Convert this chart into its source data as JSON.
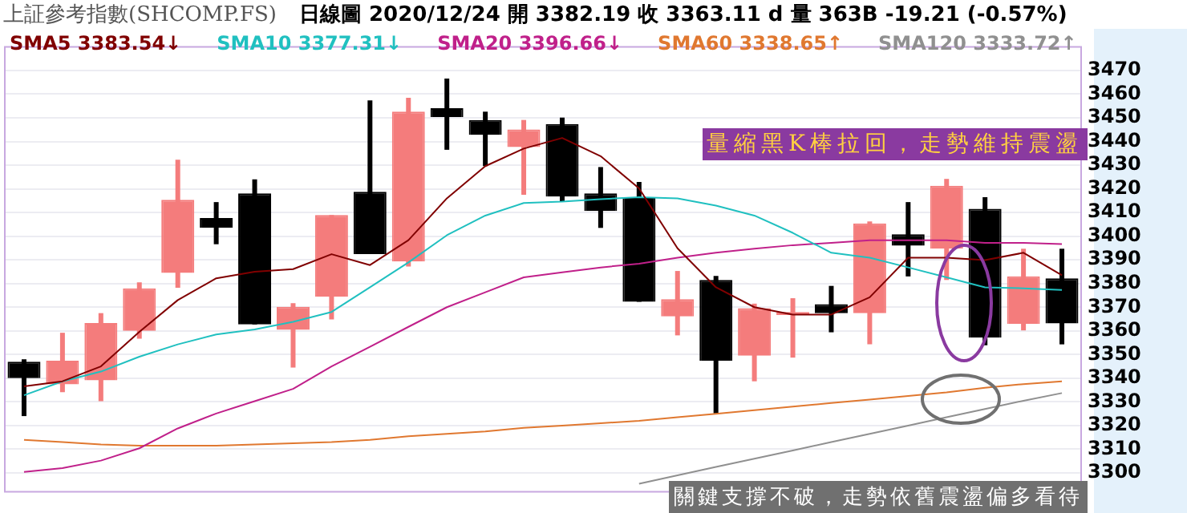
{
  "chart_data": {
    "type": "candlestick",
    "title": "上証參考指數(SHCOMP.FS)",
    "subtitle": "日線圖  2020/12/24  開 3382.19  收 3363.11 d  量 363B  -19.21 (-0.57%)",
    "categories": [
      null,
      null,
      null,
      null,
      null,
      null,
      null,
      null,
      null,
      null,
      null,
      null,
      null,
      null,
      null,
      null,
      null,
      null,
      null,
      null,
      null,
      null,
      null,
      null,
      null,
      null,
      null,
      null
    ],
    "ohlc": [
      [
        3347,
        3348,
        3324,
        3340
      ],
      [
        3337.4,
        3359.2,
        3334.1,
        3347.4
      ],
      [
        3339.1,
        3367.5,
        3330.3,
        3363.3
      ],
      [
        3360,
        3380.5,
        3356.7,
        3378
      ],
      [
        3384.5,
        3432.3,
        3378.2,
        3415.4
      ],
      [
        3407.7,
        3414.4,
        3396.6,
        3403.5
      ],
      [
        3418.1,
        3424,
        3362.7,
        3362.7
      ],
      [
        3360.4,
        3371.7,
        3344.5,
        3370.2
      ],
      [
        3374.4,
        3408.9,
        3364.8,
        3408.9
      ],
      [
        3418.8,
        3457.4,
        3392.4,
        3392.4
      ],
      [
        3389.3,
        3458.5,
        3387.2,
        3452.6
      ],
      [
        3454.1,
        3466.6,
        3436.5,
        3450.3
      ],
      [
        3449.1,
        3452.6,
        3429.6,
        3442.8
      ],
      [
        3437.6,
        3449.1,
        3417.5,
        3445.1
      ],
      [
        3447.4,
        3450.1,
        3414.6,
        3416.7
      ],
      [
        3418.1,
        3429.2,
        3403.5,
        3410.6
      ],
      [
        3416.5,
        3422.9,
        3372.3,
        3372.3
      ],
      [
        3366.1,
        3385.3,
        3358.1,
        3373.4
      ],
      [
        3381.5,
        3383.2,
        3325.1,
        3347.4
      ],
      [
        3349.5,
        3371.5,
        3338.7,
        3369.6
      ],
      [
        3366.7,
        3373.8,
        3348.7,
        3368
      ],
      [
        3371.3,
        3379,
        3359.4,
        3367.5
      ],
      [
        3367.5,
        3406.2,
        3354.3,
        3405.4
      ],
      [
        3400.8,
        3414.4,
        3383,
        3396
      ],
      [
        3394.7,
        3424.2,
        3381.5,
        3421.3
      ],
      [
        3411.6,
        3416.5,
        3353.9,
        3357.1
      ],
      [
        3363,
        3394.7,
        3360.2,
        3383
      ],
      [
        3382.19,
        3394.7,
        3354.3,
        3363.11
      ]
    ],
    "colors": [
      "#000000",
      "#f47c7c",
      "#f47c7c",
      "#f47c7c",
      "#f47c7c",
      "#000000",
      "#000000",
      "#f47c7c",
      "#f47c7c",
      "#000000",
      "#f47c7c",
      "#000000",
      "#000000",
      "#f47c7c",
      "#000000",
      "#000000",
      "#000000",
      "#f47c7c",
      "#000000",
      "#f47c7c",
      "#f47c7c",
      "#000000",
      "#f47c7c",
      "#000000",
      "#f47c7c",
      "#000000",
      "#f47c7c",
      "#000000"
    ],
    "series": [
      {
        "type": "line",
        "name": "SMA5 3383.54↓",
        "color": "#800000",
        "values": [
          3336.6,
          3338.7,
          3345,
          3359.6,
          3373,
          3382.2,
          3385,
          3386.1,
          3392.4,
          3387.8,
          3398.3,
          3416,
          3429.6,
          3437,
          3441.5,
          3433.8,
          3420.2,
          3394.9,
          3378.4,
          3370,
          3366.9,
          3366.9,
          3374.2,
          3390.9,
          3390.9,
          3389.9,
          3393,
          3383.54
        ]
      },
      {
        "type": "line",
        "name": "SMA10 3377.31↓",
        "color": "#20c0c0",
        "values": [
          3332.8,
          3338.7,
          3342.8,
          3349.1,
          3354.3,
          3358.5,
          3360.6,
          3363.8,
          3368,
          3378.4,
          3388.9,
          3400.4,
          3408.7,
          3414,
          3414.6,
          3415.6,
          3416.5,
          3416,
          3412.9,
          3408.7,
          3401.4,
          3393,
          3390.9,
          3386.8,
          3382.6,
          3378.4,
          3378,
          3377.31
        ]
      },
      {
        "type": "line",
        "name": "SMA20 3396.66↓",
        "color": "#c0208a",
        "values": [
          3300.4,
          3302,
          3305.2,
          3310.4,
          3318.8,
          3325.1,
          3330.3,
          3335.5,
          3345,
          3353.3,
          3361.7,
          3370,
          3376.3,
          3382.6,
          3384.7,
          3386.8,
          3388.4,
          3390.9,
          3393,
          3394.7,
          3396.2,
          3397.2,
          3398.3,
          3398.3,
          3398.3,
          3397.2,
          3397.2,
          3396.66
        ]
      },
      {
        "type": "line",
        "name": "SMA60 3338.65↑",
        "color": "#e07830",
        "values": [
          3314,
          3313,
          3312,
          3311.5,
          3311.5,
          3311.5,
          3312,
          3312.5,
          3313,
          3314,
          3315.5,
          3316.5,
          3317.5,
          3319,
          3320,
          3321,
          3322,
          3323.5,
          3325,
          3326.5,
          3328,
          3329.5,
          3331,
          3332.5,
          3334,
          3336,
          3337.5,
          3338.65
        ]
      },
      {
        "type": "line",
        "name": "SMA120 3333.72↑",
        "color": "#909090",
        "values": [
          null,
          null,
          null,
          null,
          null,
          null,
          null,
          null,
          null,
          null,
          null,
          null,
          null,
          null,
          null,
          null,
          3295.4,
          3299,
          3302.5,
          3306,
          3309.5,
          3313,
          3316.5,
          3320,
          3323.5,
          3327,
          3330.5,
          3333.72
        ]
      }
    ],
    "ylim": [
      3292,
      3480
    ],
    "yticks": [
      3300,
      3310,
      3320,
      3330,
      3340,
      3350,
      3360,
      3370,
      3380,
      3390,
      3400,
      3410,
      3420,
      3430,
      3440,
      3450,
      3460,
      3470
    ],
    "grid": "y",
    "legend": "top left",
    "marker": "none",
    "annotations": [
      "量縮黑K棒拉回，走勢維持震盪",
      "關鍵支撐不破，走勢依舊震盪偏多看待"
    ]
  }
}
